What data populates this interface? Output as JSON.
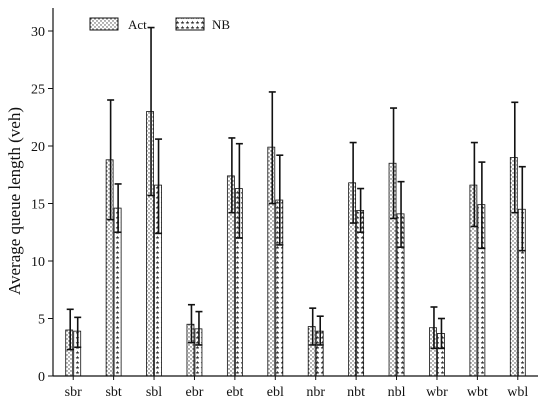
{
  "chart_data": {
    "type": "bar",
    "title": "",
    "xlabel": "",
    "ylabel": "Average queue length (veh)",
    "ylim": [
      0,
      32
    ],
    "yticks": [
      0,
      5,
      10,
      15,
      20,
      25,
      30
    ],
    "grid": false,
    "legend_position": "top-left",
    "categories": [
      "sbr",
      "sbt",
      "sbl",
      "ebr",
      "ebt",
      "ebl",
      "nbr",
      "nbt",
      "nbl",
      "wbr",
      "wbt",
      "wbl"
    ],
    "series": [
      {
        "name": "Act",
        "pattern": "dots",
        "values": [
          4.0,
          18.8,
          23.0,
          4.5,
          17.4,
          19.9,
          4.3,
          16.8,
          18.5,
          4.2,
          16.6,
          19.0
        ],
        "err_low": [
          2.3,
          13.6,
          15.7,
          2.9,
          14.2,
          15.0,
          2.7,
          13.3,
          13.7,
          2.4,
          13.0,
          14.2
        ],
        "err_high": [
          5.8,
          24.0,
          30.3,
          6.2,
          20.7,
          24.7,
          5.9,
          20.3,
          23.3,
          6.0,
          20.3,
          23.8
        ]
      },
      {
        "name": "NB",
        "pattern": "stars",
        "values": [
          3.9,
          14.6,
          16.6,
          4.1,
          16.3,
          15.3,
          3.9,
          14.4,
          14.1,
          3.7,
          14.9,
          14.5
        ],
        "err_low": [
          2.5,
          12.5,
          12.4,
          2.7,
          12.0,
          11.4,
          2.7,
          12.5,
          11.2,
          2.4,
          11.1,
          10.9
        ],
        "err_high": [
          5.1,
          16.7,
          20.6,
          5.6,
          20.2,
          19.2,
          5.2,
          16.3,
          16.9,
          5.0,
          18.6,
          18.2
        ]
      }
    ]
  },
  "colors": {
    "axis": "#111111",
    "bar_fill": "#ffffff",
    "pattern": "#333333",
    "error": "#111111"
  }
}
